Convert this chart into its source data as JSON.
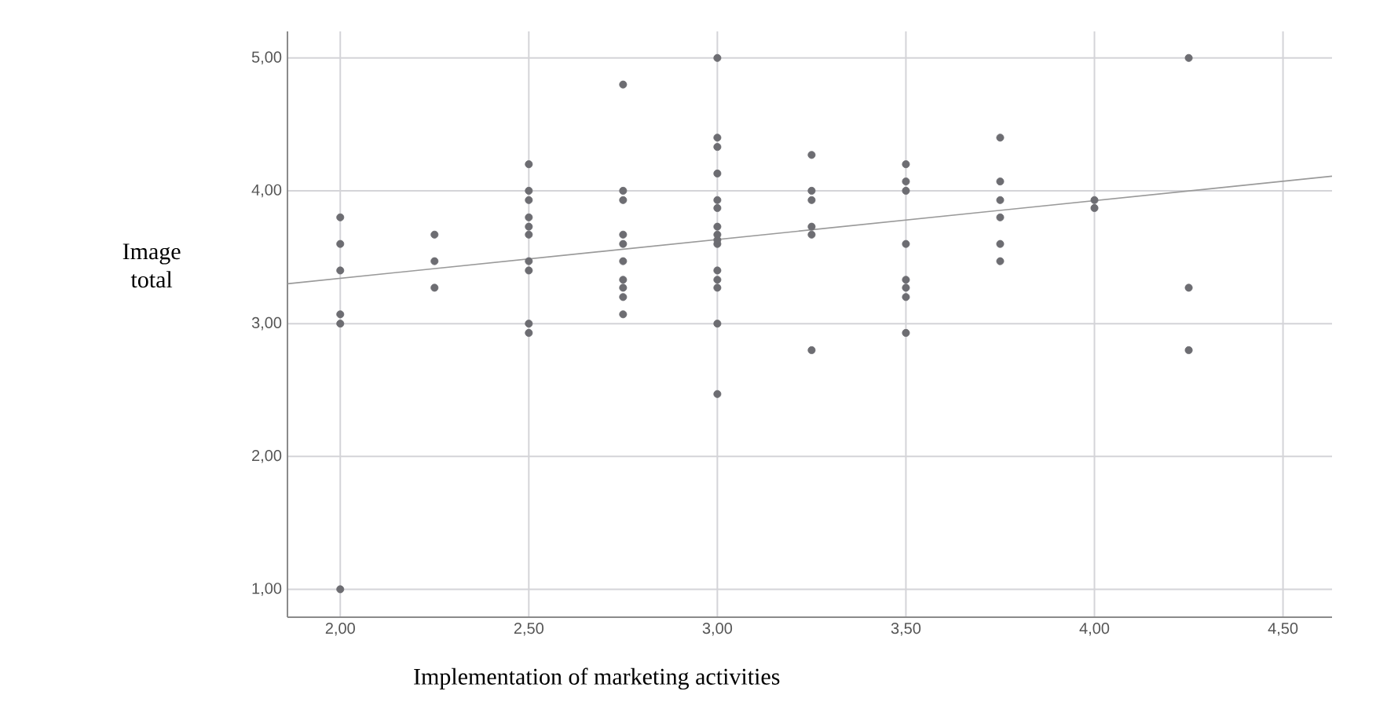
{
  "chart_data": {
    "type": "scatter",
    "xlabel": "Implementation of marketing activities",
    "ylabel": "Image total",
    "xlim": [
      1.86,
      4.63
    ],
    "ylim": [
      0.79,
      5.2
    ],
    "xticks": [
      {
        "value": 2,
        "label": "2,00"
      },
      {
        "value": 2.5,
        "label": "2,50"
      },
      {
        "value": 3,
        "label": "3,00"
      },
      {
        "value": 3.5,
        "label": "3,50"
      },
      {
        "value": 4,
        "label": "4,00"
      },
      {
        "value": 4.5,
        "label": "4,50"
      }
    ],
    "yticks": [
      {
        "value": 1,
        "label": "1,00"
      },
      {
        "value": 2,
        "label": "2,00"
      },
      {
        "value": 3,
        "label": "3,00"
      },
      {
        "value": 4,
        "label": "4,00"
      },
      {
        "value": 5,
        "label": "5,00"
      }
    ],
    "grid": true,
    "series": [
      {
        "marker": "circle",
        "color": "#6d6d72",
        "x": [
          2,
          2,
          2,
          2,
          2,
          2,
          2.25,
          2.25,
          2.25,
          2.5,
          2.5,
          2.5,
          2.5,
          2.5,
          2.5,
          2.5,
          2.5,
          2.5,
          2.5,
          2.75,
          2.75,
          2.75,
          2.75,
          2.75,
          2.75,
          2.75,
          2.75,
          2.75,
          2.75,
          3,
          3,
          3,
          3,
          3,
          3,
          3,
          3,
          3,
          3,
          3,
          3,
          3,
          3,
          3,
          3.25,
          3.25,
          3.25,
          3.25,
          3.25,
          3.25,
          3.5,
          3.5,
          3.5,
          3.5,
          3.5,
          3.5,
          3.5,
          3.5,
          3.75,
          3.75,
          3.75,
          3.75,
          3.75,
          3.75,
          4,
          4,
          4.25,
          4.25,
          4.25
        ],
        "values": [
          3.8,
          3.6,
          3.4,
          3.07,
          3.0,
          1.0,
          3.67,
          3.47,
          3.27,
          4.2,
          4.0,
          3.93,
          3.8,
          3.73,
          3.67,
          3.47,
          3.4,
          3.0,
          2.93,
          4.8,
          4.0,
          3.93,
          3.67,
          3.6,
          3.47,
          3.33,
          3.27,
          3.2,
          3.07,
          5.0,
          4.4,
          4.33,
          4.13,
          3.93,
          3.87,
          3.73,
          3.67,
          3.6,
          3.4,
          3.33,
          3.27,
          3.0,
          2.47,
          3.63,
          4.27,
          4.0,
          3.93,
          3.73,
          3.67,
          2.8,
          4.2,
          4.07,
          4.0,
          3.6,
          3.33,
          3.27,
          3.2,
          2.93,
          4.4,
          4.07,
          3.93,
          3.8,
          3.6,
          3.47,
          3.93,
          3.87,
          5.0,
          3.27,
          2.8
        ]
      },
      {
        "type": "line",
        "marker": "none",
        "color": "#9a9a9a",
        "x": [
          1.86,
          4.63
        ],
        "values": [
          3.3,
          4.11
        ]
      }
    ]
  }
}
